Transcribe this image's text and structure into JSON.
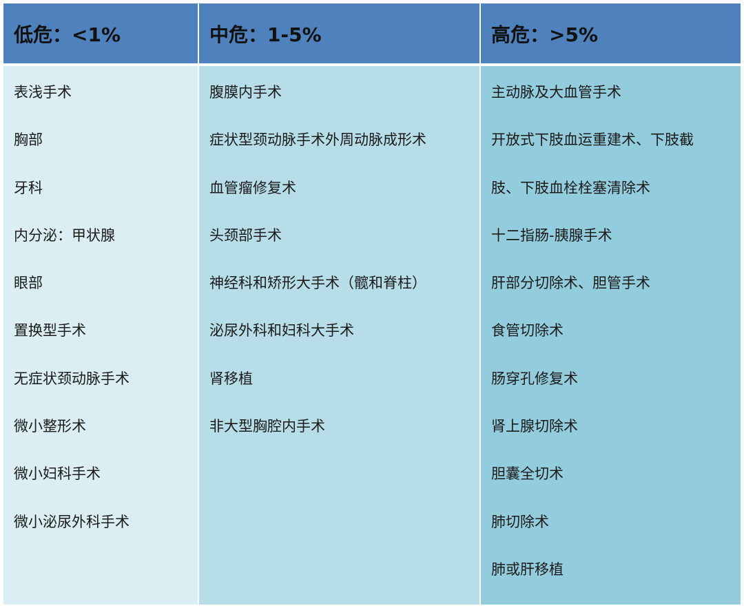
{
  "columns": [
    {
      "header": "低危：<1%",
      "items": [
        "表浅手术",
        "胸部",
        "牙科",
        "内分泌：甲状腺",
        "眼部",
        "置换型手术",
        "无症状颈动脉手术",
        "微小整形术",
        "微小妇科手术",
        "微小泌尿外科手术"
      ]
    },
    {
      "header": "中危：1-5%",
      "items": [
        "腹膜内手术",
        "症状型颈动脉手术外周动脉成形术",
        "血管瘤修复术",
        "头颈部手术",
        "神经科和矫形大手术（髋和脊柱）",
        "泌尿外科和妇科大手术",
        "肾移植",
        "非大型胸腔内手术"
      ]
    },
    {
      "header": "高危：>5%",
      "items": [
        "主动脉及大血管手术",
        "开放式下肢血运重建术、下肢截",
        "肢、下肢血栓栓塞清除术",
        "十二指肠-胰腺手术",
        "肝部分切除术、胆管手术",
        "食管切除术",
        "肠穿孔修复术",
        "肾上腺切除术",
        "胆囊全切术",
        "肺切除术",
        "肺或肝移植"
      ]
    }
  ],
  "colors": {
    "header": "#4f81bd",
    "low": "#dbeef3",
    "mid": "#b7dee8",
    "high": "#93cddd"
  }
}
